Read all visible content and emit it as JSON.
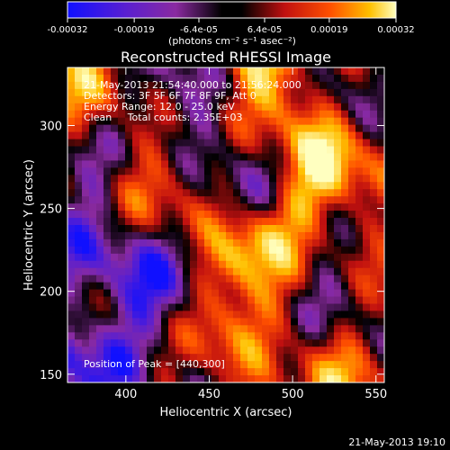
{
  "chart_data": {
    "type": "heatmap",
    "title": "Reconstructed RHESSI Image",
    "xlabel": "Heliocentric X (arcsec)",
    "ylabel": "Heliocentric Y (arcsec)",
    "xlim": [
      365,
      555
    ],
    "ylim": [
      145,
      335
    ],
    "x_ticks": [
      400,
      450,
      500,
      550
    ],
    "y_ticks": [
      150,
      200,
      250,
      300
    ],
    "x_tick_labels": [
      "400",
      "450",
      "500",
      "550"
    ],
    "y_tick_labels": [
      "150",
      "200",
      "250",
      "300"
    ],
    "colorbar": {
      "range": [
        -0.00032,
        0.00032
      ],
      "tick_values": [
        -0.00032,
        -0.00019,
        -6.4e-05,
        6.4e-05,
        0.00019,
        0.00032
      ],
      "tick_labels": [
        "-0.00032",
        "-0.00019",
        "-6.4e-05",
        "6.4e-05",
        "0.00019",
        "0.00032"
      ],
      "units_label": "(photons cm⁻² s⁻¹ asec⁻²)",
      "colors": [
        "#1010ff",
        "#5a1fd0",
        "#8a2aa0",
        "#000000",
        "#c01010",
        "#ff5000",
        "#ffc000",
        "#ffffc0"
      ]
    },
    "annotations": {
      "time": "21-May-2013 21:54:40.000 to 21:56:24.000",
      "detectors": "Detectors: 3F 5F 6F 7F 8F 9F, Att 0",
      "energy": "Energy Range: 12.0 - 25.0 keV",
      "clean": "Clean     Total counts: 2.35E+03",
      "peak": "Position of Peak = [440,300]"
    },
    "peak_position": [
      440,
      300
    ],
    "grid": false
  },
  "footer": {
    "timestamp": "21-May-2013 19:10"
  }
}
